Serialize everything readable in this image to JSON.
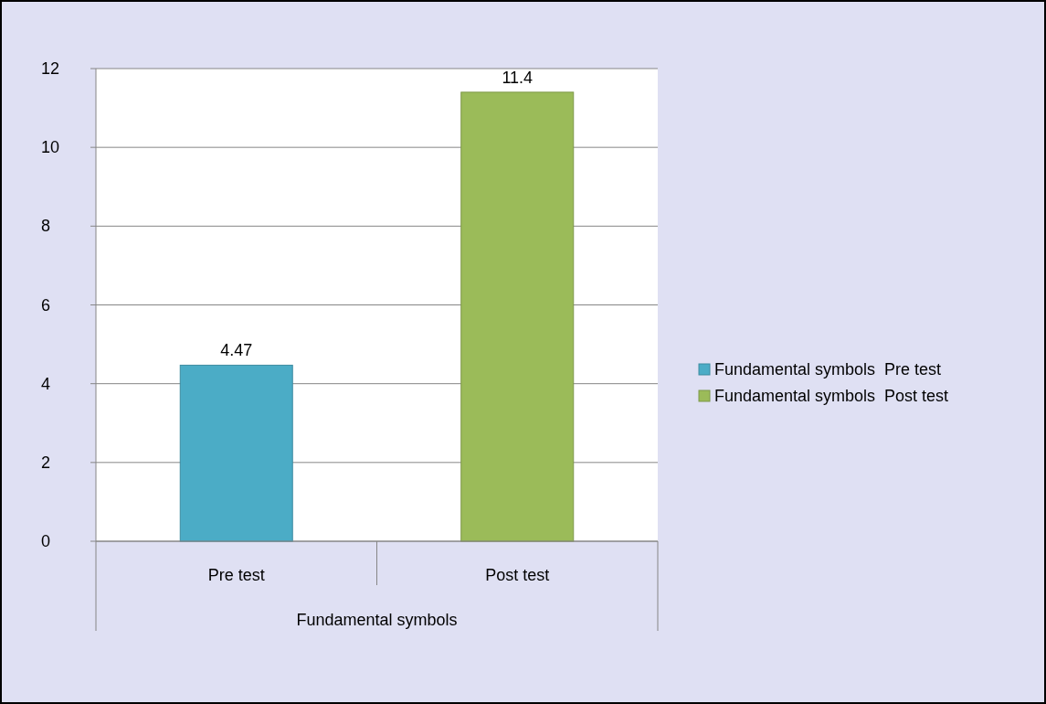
{
  "chart_data": {
    "type": "bar",
    "categories": [
      "Pre test",
      "Post test"
    ],
    "xlabel": "Fundamental symbols",
    "series": [
      {
        "name": "Fundamental symbols  Pre test",
        "color": "#4bacc6",
        "values": [
          4.47,
          null
        ]
      },
      {
        "name": "Fundamental symbols  Post test",
        "color": "#9bbb59",
        "values": [
          null,
          11.4
        ]
      }
    ],
    "ylim": [
      0,
      12
    ],
    "yticks": [
      0,
      2,
      4,
      6,
      8,
      10,
      12
    ],
    "grid": "y",
    "legend": "right",
    "data_labels": true
  }
}
